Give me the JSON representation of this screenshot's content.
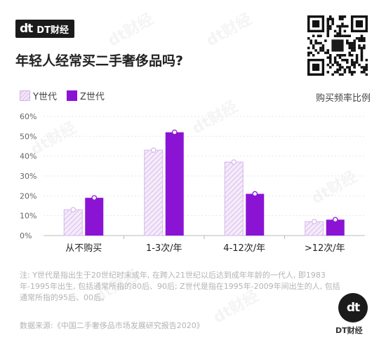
{
  "brand": {
    "logo": "dt",
    "name": "DT财经"
  },
  "headline": "年轻人经常买二手奢侈品吗?",
  "legend": [
    {
      "label": "Y世代",
      "color": "#e3cdef",
      "hatch": true
    },
    {
      "label": "Z世代",
      "color": "#8b14d4",
      "hatch": false
    }
  ],
  "metric_label": "购买频率比例",
  "colors": {
    "accent": "#8b14d4",
    "light": "#e3cdef",
    "hatch": "#d3b1ea",
    "axis": "#bbbbbb",
    "dark": "#1b1b1b"
  },
  "chart_data": {
    "type": "bar",
    "categories": [
      "从不购买",
      "1-3次/年",
      "4-12次/年",
      ">12次/年"
    ],
    "series": [
      {
        "name": "Y世代",
        "values": [
          13,
          43,
          37,
          7
        ]
      },
      {
        "name": "Z世代",
        "values": [
          19,
          52,
          21,
          8
        ]
      }
    ],
    "yticks": [
      "0%",
      "10%",
      "20%",
      "30%",
      "40%",
      "50%",
      "60%"
    ],
    "ylim": [
      0,
      60
    ],
    "grid": true,
    "legend_position": "top-left"
  },
  "note": "注: Y世代是指出生于20世纪时末成年, 在跨入21世纪以后达到成年年龄的一代人, 即1983年-1995年出生, 包括通常所指的80后、90后; Z世代是指在1995年-2009年间出生的人, 包括通常所指的95后、00后。",
  "source": "数据来源:《中国二手奢侈品市场发展研究报告2020》",
  "badge": {
    "logo": "dt",
    "label": "DT财经"
  },
  "watermark": "dt财经"
}
